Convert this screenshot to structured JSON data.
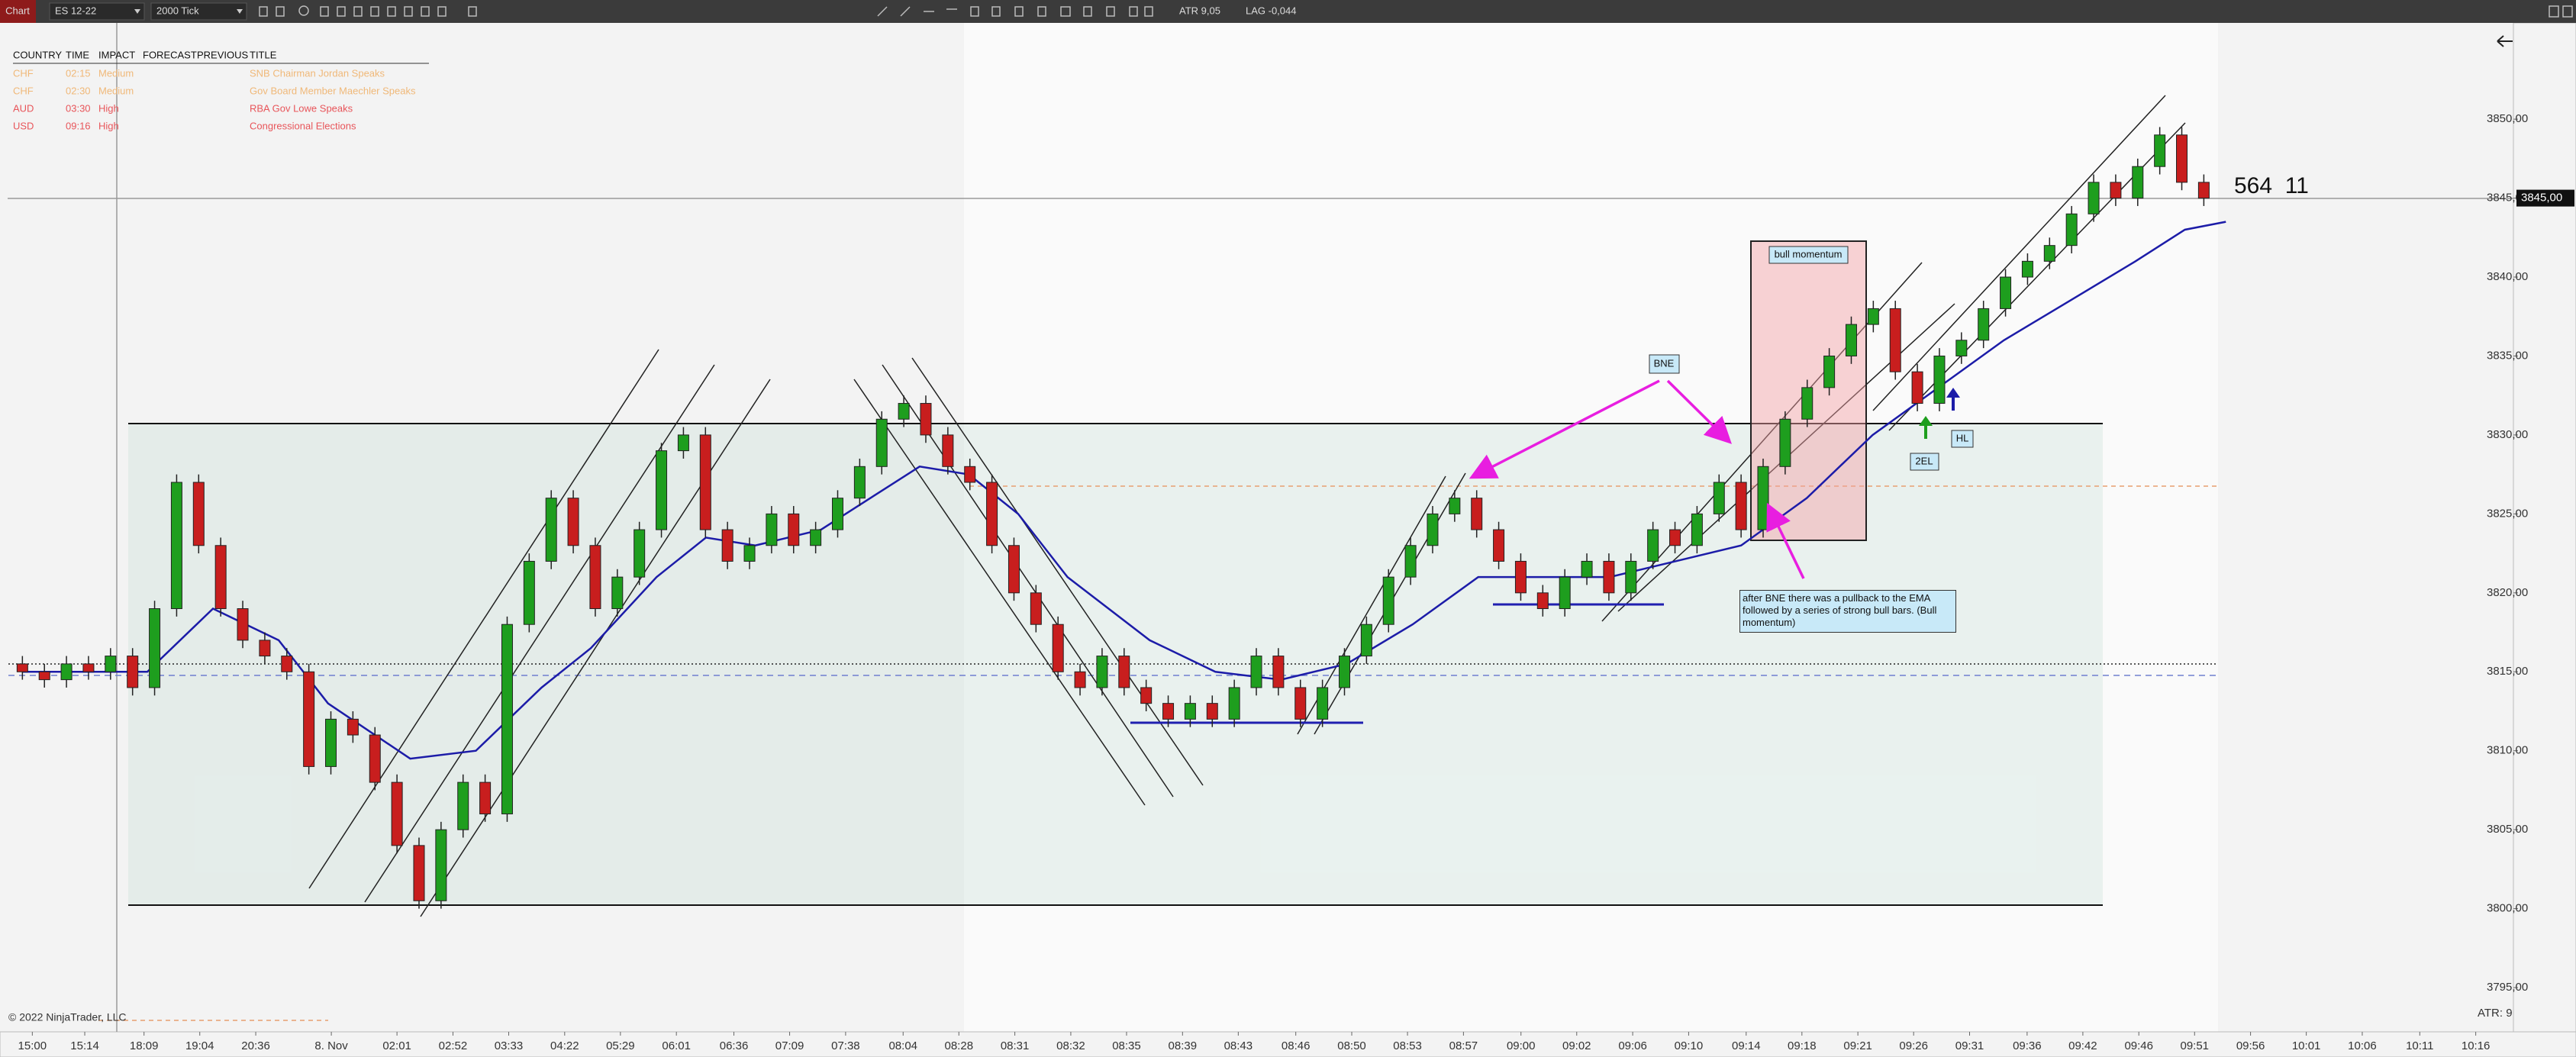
{
  "toolbar": {
    "tab": "Chart",
    "instrument": "ES 12-22",
    "period": "2000 Tick",
    "atr": "ATR 9,05",
    "lag": "LAG -0,044"
  },
  "events": {
    "columns": [
      "COUNTRY",
      "TIME",
      "IMPACT",
      "FORECAST",
      "PREVIOUS",
      "TITLE"
    ],
    "rows": [
      {
        "country": "CHF",
        "time": "02:15",
        "impact": "Medium",
        "title": "SNB Chairman Jordan Speaks"
      },
      {
        "country": "CHF",
        "time": "02:30",
        "impact": "Medium",
        "title": "Gov Board Member Maechler Speaks"
      },
      {
        "country": "AUD",
        "time": "03:30",
        "impact": "High",
        "title": "RBA Gov Lowe Speaks"
      },
      {
        "country": "USD",
        "time": "09:16",
        "impact": "High",
        "title": "Congressional Elections"
      }
    ]
  },
  "annotations": {
    "bne": "BNE",
    "bull_momentum": "bull momentum",
    "el2": "2EL",
    "hl": "HL",
    "note": "after BNE there was a pullback to the EMA followed by a series of strong bull bars. (Bull momentum)"
  },
  "counter": "564  11",
  "copyright": "© 2022 NinjaTrader, LLC",
  "atr_label": "ATR: 9",
  "chart_data": {
    "type": "candlestick",
    "up_color": "#1e9e1e",
    "down_color": "#c81e1e",
    "xlim": [
      -0.67,
      113.05
    ],
    "ylim": [
      3792.2,
      3856.0
    ],
    "xticks": [
      {
        "value": 0.45,
        "label": "15:00"
      },
      {
        "value": 2.83,
        "label": "15:14"
      },
      {
        "value": 5.52,
        "label": "18:09"
      },
      {
        "value": 8.05,
        "label": "19:04"
      },
      {
        "value": 10.59,
        "label": "20:36"
      },
      {
        "value": 14.02,
        "label": "8. Nov"
      },
      {
        "value": 17.0,
        "label": "02:01"
      },
      {
        "value": 19.54,
        "label": "02:52"
      },
      {
        "value": 22.07,
        "label": "03:33"
      },
      {
        "value": 24.61,
        "label": "04:22"
      },
      {
        "value": 27.14,
        "label": "05:29"
      },
      {
        "value": 29.68,
        "label": "06:01"
      },
      {
        "value": 32.29,
        "label": "06:36"
      },
      {
        "value": 34.82,
        "label": "07:09"
      },
      {
        "value": 37.36,
        "label": "07:38"
      },
      {
        "value": 39.97,
        "label": "08:04"
      },
      {
        "value": 42.5,
        "label": "08:28"
      },
      {
        "value": 45.04,
        "label": "08:31"
      },
      {
        "value": 47.58,
        "label": "08:32"
      },
      {
        "value": 50.11,
        "label": "08:35"
      },
      {
        "value": 52.65,
        "label": "08:39"
      },
      {
        "value": 55.18,
        "label": "08:43"
      },
      {
        "value": 57.79,
        "label": "08:46"
      },
      {
        "value": 60.33,
        "label": "08:50"
      },
      {
        "value": 62.86,
        "label": "08:53"
      },
      {
        "value": 65.4,
        "label": "08:57"
      },
      {
        "value": 68.01,
        "label": "09:00"
      },
      {
        "value": 70.54,
        "label": "09:02"
      },
      {
        "value": 73.08,
        "label": "09:06"
      },
      {
        "value": 75.62,
        "label": "09:10"
      },
      {
        "value": 78.23,
        "label": "09:14"
      },
      {
        "value": 80.76,
        "label": "09:18"
      },
      {
        "value": 83.3,
        "label": "09:21"
      },
      {
        "value": 85.83,
        "label": "09:26"
      },
      {
        "value": 88.37,
        "label": "09:31"
      },
      {
        "value": 90.98,
        "label": "09:36"
      },
      {
        "value": 93.51,
        "label": "09:42"
      },
      {
        "value": 96.05,
        "label": "09:46"
      },
      {
        "value": 98.58,
        "label": "09:51"
      },
      {
        "value": 101.12,
        "label": "09:56"
      },
      {
        "value": 103.65,
        "label": "10:01"
      },
      {
        "value": 106.19,
        "label": "10:06"
      },
      {
        "value": 108.8,
        "label": "10:11"
      },
      {
        "value": 111.34,
        "label": "10:16"
      }
    ],
    "yticks": [
      {
        "value": 3795,
        "label": "3795,00"
      },
      {
        "value": 3800,
        "label": "3800,00"
      },
      {
        "value": 3805,
        "label": "3805,00"
      },
      {
        "value": 3810,
        "label": "3810,00"
      },
      {
        "value": 3815,
        "label": "3815,00"
      },
      {
        "value": 3820,
        "label": "3820,00"
      },
      {
        "value": 3825,
        "label": "3825,00"
      },
      {
        "value": 3830,
        "label": "3830,00"
      },
      {
        "value": 3835,
        "label": "3835,00"
      },
      {
        "value": 3840,
        "label": "3840,00"
      },
      {
        "value": 3845,
        "label": "3845,00"
      },
      {
        "value": 3850,
        "label": "3850,00"
      }
    ],
    "last_price": {
      "value": 3845,
      "label": "3845,00"
    },
    "candles": [
      [
        3815.5,
        3816,
        3814.5,
        3815
      ],
      [
        3815,
        3815.5,
        3814,
        3814.5
      ],
      [
        3814.5,
        3816,
        3814,
        3815.5
      ],
      [
        3815.5,
        3816,
        3814.5,
        3815
      ],
      [
        3815,
        3816.5,
        3814.5,
        3816
      ],
      [
        3816,
        3816.5,
        3813.5,
        3814
      ],
      [
        3814,
        3819.5,
        3813.5,
        3819
      ],
      [
        3819,
        3827.5,
        3818.5,
        3827
      ],
      [
        3827,
        3827.5,
        3822.5,
        3823
      ],
      [
        3823,
        3823.5,
        3818.5,
        3819
      ],
      [
        3819,
        3819.5,
        3816.5,
        3817
      ],
      [
        3817,
        3817.5,
        3815.5,
        3816
      ],
      [
        3816,
        3816.5,
        3814.5,
        3815
      ],
      [
        3815,
        3815.5,
        3808.5,
        3809
      ],
      [
        3809,
        3812.5,
        3808.5,
        3812
      ],
      [
        3812,
        3812.5,
        3810.5,
        3811
      ],
      [
        3811,
        3811.5,
        3807.5,
        3808
      ],
      [
        3808,
        3808.5,
        3803.5,
        3804
      ],
      [
        3804,
        3804.5,
        3800,
        3800.5
      ],
      [
        3800.5,
        3805.5,
        3800,
        3805
      ],
      [
        3805,
        3808.5,
        3804.5,
        3808
      ],
      [
        3808,
        3808.5,
        3805.5,
        3806
      ],
      [
        3806,
        3818.5,
        3805.5,
        3818
      ],
      [
        3818,
        3822.5,
        3817.5,
        3822
      ],
      [
        3822,
        3826.5,
        3821.5,
        3826
      ],
      [
        3826,
        3826.5,
        3822.5,
        3823
      ],
      [
        3823,
        3823.5,
        3818.5,
        3819
      ],
      [
        3819,
        3821.5,
        3818.5,
        3821
      ],
      [
        3821,
        3824.5,
        3820.5,
        3824
      ],
      [
        3824,
        3829.5,
        3823.5,
        3829
      ],
      [
        3829,
        3830.5,
        3828.5,
        3830
      ],
      [
        3830,
        3830.5,
        3823.5,
        3824
      ],
      [
        3824,
        3824.5,
        3821.5,
        3822
      ],
      [
        3822,
        3823.5,
        3821.5,
        3823
      ],
      [
        3823,
        3825.5,
        3822.5,
        3825
      ],
      [
        3825,
        3825.5,
        3822.5,
        3823
      ],
      [
        3823,
        3824.5,
        3822.5,
        3824
      ],
      [
        3824,
        3826.5,
        3823.5,
        3826
      ],
      [
        3826,
        3828.5,
        3825.5,
        3828
      ],
      [
        3828,
        3831.5,
        3827.5,
        3831
      ],
      [
        3831,
        3832.5,
        3830.5,
        3832
      ],
      [
        3832,
        3832.5,
        3829.5,
        3830
      ],
      [
        3830,
        3830.5,
        3827.5,
        3828
      ],
      [
        3828,
        3828.5,
        3826.5,
        3827
      ],
      [
        3827,
        3827.5,
        3822.5,
        3823
      ],
      [
        3823,
        3823.5,
        3819.5,
        3820
      ],
      [
        3820,
        3820.5,
        3817.5,
        3818
      ],
      [
        3818,
        3818.5,
        3814.5,
        3815
      ],
      [
        3815,
        3815.5,
        3813.5,
        3814
      ],
      [
        3814,
        3816.5,
        3813.5,
        3816
      ],
      [
        3816,
        3816.5,
        3813.5,
        3814
      ],
      [
        3814,
        3814.5,
        3812.5,
        3813
      ],
      [
        3813,
        3813.5,
        3811.5,
        3812
      ],
      [
        3812,
        3813.5,
        3811.5,
        3813
      ],
      [
        3813,
        3813.5,
        3811.5,
        3812
      ],
      [
        3812,
        3814.5,
        3811.5,
        3814
      ],
      [
        3814,
        3816.5,
        3813.5,
        3816
      ],
      [
        3816,
        3816.5,
        3813.5,
        3814
      ],
      [
        3814,
        3814.5,
        3811.5,
        3812
      ],
      [
        3812,
        3814.5,
        3811.5,
        3814
      ],
      [
        3814,
        3816.5,
        3813.5,
        3816
      ],
      [
        3816,
        3818.5,
        3815.5,
        3818
      ],
      [
        3818,
        3821.5,
        3817.5,
        3821
      ],
      [
        3821,
        3823.5,
        3820.5,
        3823
      ],
      [
        3823,
        3825.5,
        3822.5,
        3825
      ],
      [
        3825,
        3826.5,
        3824.5,
        3826
      ],
      [
        3826,
        3826.5,
        3823.5,
        3824
      ],
      [
        3824,
        3824.5,
        3821.5,
        3822
      ],
      [
        3822,
        3822.5,
        3819.5,
        3820
      ],
      [
        3820,
        3820.5,
        3818.5,
        3819
      ],
      [
        3819,
        3821.5,
        3818.5,
        3821
      ],
      [
        3821,
        3822.5,
        3820.5,
        3822
      ],
      [
        3822,
        3822.5,
        3819.5,
        3820
      ],
      [
        3820,
        3822.5,
        3819.5,
        3822
      ],
      [
        3822,
        3824.5,
        3821.5,
        3824
      ],
      [
        3824,
        3824.5,
        3822.5,
        3823
      ],
      [
        3823,
        3825.5,
        3822.5,
        3825
      ],
      [
        3825,
        3827.5,
        3824.5,
        3827
      ],
      [
        3827,
        3827.5,
        3823.5,
        3824
      ],
      [
        3824,
        3828.5,
        3823.5,
        3828
      ],
      [
        3828,
        3831.5,
        3827.5,
        3831
      ],
      [
        3831,
        3833.5,
        3830.5,
        3833
      ],
      [
        3833,
        3835.5,
        3832.5,
        3835
      ],
      [
        3835,
        3837.5,
        3834.5,
        3837
      ],
      [
        3837,
        3838.5,
        3836.5,
        3838
      ],
      [
        3838,
        3838.5,
        3833.5,
        3834
      ],
      [
        3834,
        3834.5,
        3831.5,
        3832
      ],
      [
        3832,
        3835.5,
        3831.5,
        3835
      ],
      [
        3835,
        3836.5,
        3834.5,
        3836
      ],
      [
        3836,
        3838.5,
        3835.5,
        3838
      ],
      [
        3838,
        3840.5,
        3837.5,
        3840
      ],
      [
        3840,
        3841.5,
        3839.5,
        3841
      ],
      [
        3841,
        3842.5,
        3840.5,
        3842
      ],
      [
        3842,
        3844.5,
        3841.5,
        3844
      ],
      [
        3844,
        3846.5,
        3843.5,
        3846
      ],
      [
        3846,
        3846.5,
        3844.5,
        3845
      ],
      [
        3845,
        3847.5,
        3844.5,
        3847
      ],
      [
        3847,
        3849.5,
        3846.5,
        3849
      ],
      [
        3849,
        3849.5,
        3845.5,
        3846
      ],
      [
        3846,
        3846.5,
        3844.5,
        3845
      ]
    ],
    "ema": {
      "color": "#1c1ca8",
      "x": [
        0,
        3,
        5.67,
        8.65,
        11.63,
        13.87,
        17.6,
        20.58,
        23.56,
        25.8,
        28.78,
        31.02,
        33.26,
        36.24,
        38.48,
        40.72,
        42.95,
        45.19,
        47.43,
        51.16,
        54.14,
        57.12,
        60.1,
        63.09,
        66.07,
        69.05,
        72.04,
        75.02,
        78.0,
        80.98,
        83.97,
        86.95,
        89.93,
        92.92,
        95.9,
        98.14,
        100
      ],
      "values": [
        3815,
        3815,
        3815,
        3819,
        3817,
        3813,
        3809.5,
        3810,
        3814,
        3816.5,
        3821,
        3823.5,
        3823,
        3824,
        3826,
        3828,
        3827.5,
        3825,
        3821,
        3817,
        3815,
        3814.5,
        3815.5,
        3818,
        3821,
        3821,
        3821,
        3822,
        3823,
        3826,
        3830,
        3833,
        3836,
        3838.5,
        3841,
        3843,
        3843.5
      ]
    }
  }
}
